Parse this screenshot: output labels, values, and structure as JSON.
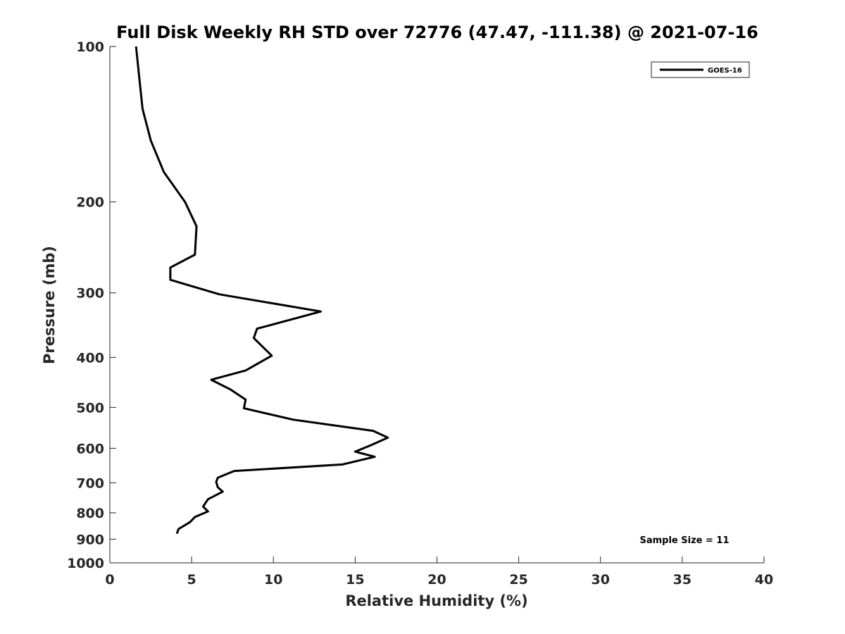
{
  "chart_data": {
    "type": "line",
    "title": "Full Disk Weekly RH STD over 72776 (47.47, -111.38) @ 2021-07-16",
    "xlabel": "Relative Humidity (%)",
    "ylabel": "Pressure (mb)",
    "xlim": [
      0,
      40
    ],
    "ylim": [
      100,
      1000
    ],
    "y_scale": "log",
    "y_reversed": true,
    "x_ticks": [
      "0",
      "5",
      "10",
      "15",
      "20",
      "25",
      "30",
      "35",
      "40"
    ],
    "y_ticks": [
      "100",
      "200",
      "300",
      "400",
      "500",
      "600",
      "700",
      "800",
      "900",
      "1000"
    ],
    "grid": false,
    "legend_position": "top-right",
    "series": [
      {
        "name": "GOES-16",
        "color": "#000000",
        "points": [
          [
            1.6,
            100
          ],
          [
            1.8,
            115
          ],
          [
            2.0,
            132
          ],
          [
            2.5,
            152
          ],
          [
            3.3,
            175
          ],
          [
            4.6,
            200
          ],
          [
            5.3,
            223
          ],
          [
            5.2,
            253
          ],
          [
            3.7,
            268
          ],
          [
            3.7,
            283
          ],
          [
            6.7,
            302
          ],
          [
            12.9,
            326
          ],
          [
            9.0,
            352
          ],
          [
            8.8,
            367
          ],
          [
            9.9,
            397
          ],
          [
            8.3,
            424
          ],
          [
            6.2,
            442
          ],
          [
            7.4,
            462
          ],
          [
            8.3,
            483
          ],
          [
            8.2,
            502
          ],
          [
            11.2,
            528
          ],
          [
            16.1,
            555
          ],
          [
            17.0,
            572
          ],
          [
            15.9,
            593
          ],
          [
            15.0,
            609
          ],
          [
            16.2,
            623
          ],
          [
            14.2,
            645
          ],
          [
            7.6,
            664
          ],
          [
            6.6,
            684
          ],
          [
            6.5,
            697
          ],
          [
            6.6,
            714
          ],
          [
            6.9,
            728
          ],
          [
            6.0,
            753
          ],
          [
            5.7,
            778
          ],
          [
            6.0,
            795
          ],
          [
            5.2,
            815
          ],
          [
            4.9,
            834
          ],
          [
            4.2,
            860
          ],
          [
            4.1,
            878
          ]
        ]
      }
    ]
  },
  "annotations": {
    "sample_size": "Sample Size = 11"
  }
}
